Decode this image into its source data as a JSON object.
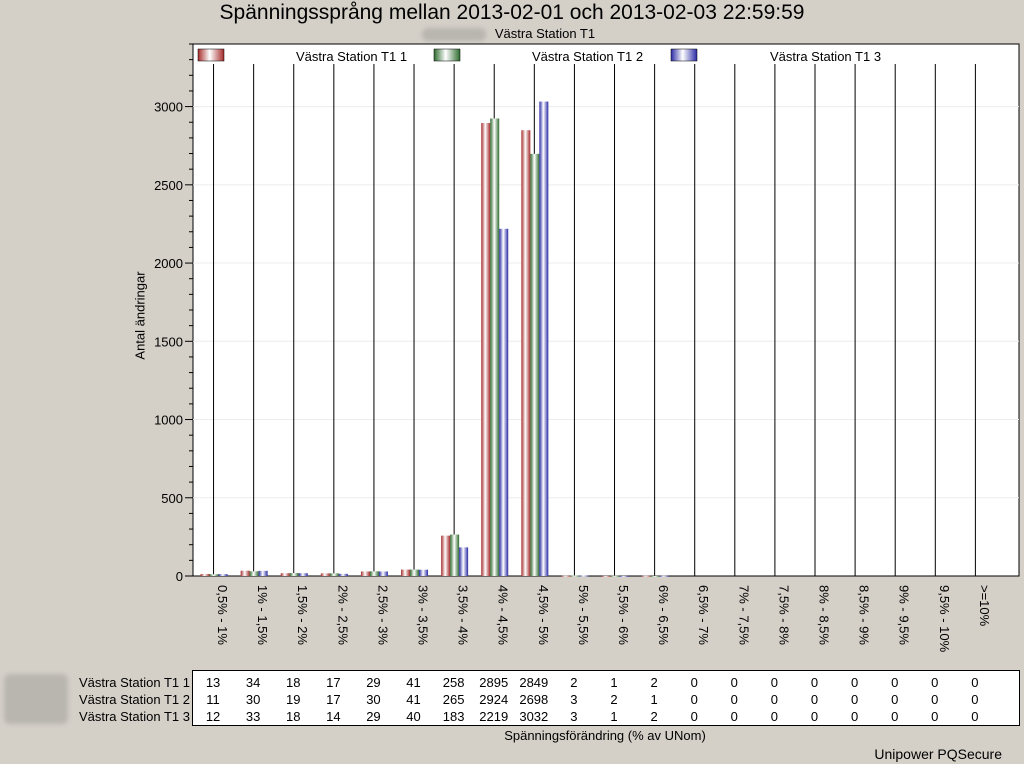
{
  "title": "Spänningssprång mellan 2013-02-01 och 2013-02-03 22:59:59",
  "subtitle": "Västra Station T1",
  "footer": "Unipower PQSecure",
  "colors": {
    "series1": "#a52a2a",
    "series2": "#2e6b2e",
    "series3": "#2a2aa5",
    "background": "#d4d0c8",
    "plot_background": "#ffffff"
  },
  "chart_data": {
    "type": "bar",
    "title": "Spänningssprång mellan 2013-02-01 och 2013-02-03 22:59:59",
    "subtitle": "Västra Station T1",
    "xlabel": "Spänningsförändring (% av UNom)",
    "ylabel": "Antal ändringar",
    "ylim": [
      0,
      3400
    ],
    "yticks": [
      0,
      500,
      1000,
      1500,
      2000,
      2500,
      3000
    ],
    "grid": true,
    "legend_position": "top",
    "categories": [
      "0,5% - 1%",
      "1% - 1,5%",
      "1,5% - 2%",
      "2% - 2,5%",
      "2,5% - 3%",
      "3% - 3,5%",
      "3,5% - 4%",
      "4% - 4,5%",
      "4,5% - 5%",
      "5% - 5,5%",
      "5,5% - 6%",
      "6% - 6,5%",
      "6,5% - 7%",
      "7% - 7,5%",
      "7,5% - 8%",
      "8% - 8,5%",
      "8,5% - 9%",
      "9% - 9,5%",
      "9,5% - 10%",
      ">=10%"
    ],
    "series": [
      {
        "name": "Västra Station T1 1",
        "values": [
          13,
          34,
          18,
          17,
          29,
          41,
          258,
          2895,
          2849,
          2,
          1,
          2,
          0,
          0,
          0,
          0,
          0,
          0,
          0,
          0
        ]
      },
      {
        "name": "Västra Station T1 2",
        "values": [
          11,
          30,
          19,
          17,
          30,
          41,
          265,
          2924,
          2698,
          3,
          2,
          1,
          0,
          0,
          0,
          0,
          0,
          0,
          0,
          0
        ]
      },
      {
        "name": "Västra Station T1 3",
        "values": [
          12,
          33,
          18,
          14,
          29,
          40,
          183,
          2219,
          3032,
          3,
          1,
          2,
          0,
          0,
          0,
          0,
          0,
          0,
          0,
          0
        ]
      }
    ]
  }
}
